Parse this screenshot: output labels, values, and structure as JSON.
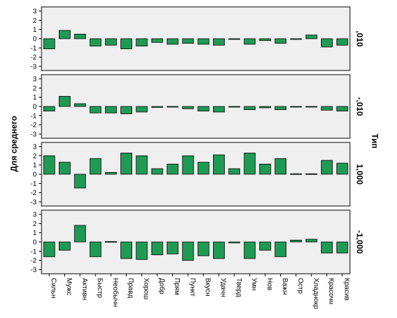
{
  "chart_data": {
    "type": "bar",
    "ylabel": "Для среднего",
    "facet_label": "Тип",
    "ylim": [
      -3,
      3
    ],
    "yticks": [
      3,
      2,
      1,
      0,
      -1,
      -2,
      -3
    ],
    "bar_color": "#1f9a55",
    "panel_bg": "#efefef",
    "categories": [
      "Сильн",
      "Мужс",
      "Активн",
      "Быстр",
      "Необычн",
      "Правд",
      "Хорош",
      "Добр",
      "Прям",
      "Пункт",
      "Вкусн",
      "Удачн",
      "Тверд",
      "Умн",
      "Нов",
      "Важн",
      "Остр",
      "Хладнокр",
      "Красочн",
      "Красив"
    ],
    "panels": [
      {
        "label": ",010",
        "values": [
          -1.1,
          0.9,
          0.5,
          -0.8,
          -0.7,
          -1.1,
          -0.8,
          -0.4,
          -0.6,
          -0.5,
          -0.6,
          -0.7,
          -0.05,
          -0.6,
          -0.2,
          -0.5,
          -0.05,
          0.4,
          -0.9,
          -0.7
        ]
      },
      {
        "label": "-,010",
        "values": [
          -0.5,
          1.1,
          0.3,
          -0.7,
          -0.7,
          -0.8,
          -0.6,
          -0.1,
          -0.05,
          -0.25,
          -0.5,
          -0.6,
          -0.05,
          -0.35,
          -0.15,
          -0.35,
          -0.05,
          -0.05,
          -0.4,
          -0.5
        ]
      },
      {
        "label": "1,000",
        "values": [
          2.0,
          1.3,
          -1.5,
          1.7,
          0.2,
          2.3,
          2.0,
          0.6,
          1.1,
          2.0,
          1.3,
          2.1,
          0.6,
          2.3,
          1.1,
          1.7,
          0.05,
          0.05,
          1.5,
          1.2
        ]
      },
      {
        "label": "-1,000",
        "values": [
          -1.6,
          -0.9,
          1.8,
          -1.6,
          0.05,
          -1.8,
          -1.9,
          -1.4,
          -1.3,
          -2.0,
          -1.5,
          -1.8,
          -0.1,
          -1.8,
          -0.9,
          -1.6,
          0.2,
          0.3,
          -1.2,
          -1.2
        ]
      }
    ]
  }
}
